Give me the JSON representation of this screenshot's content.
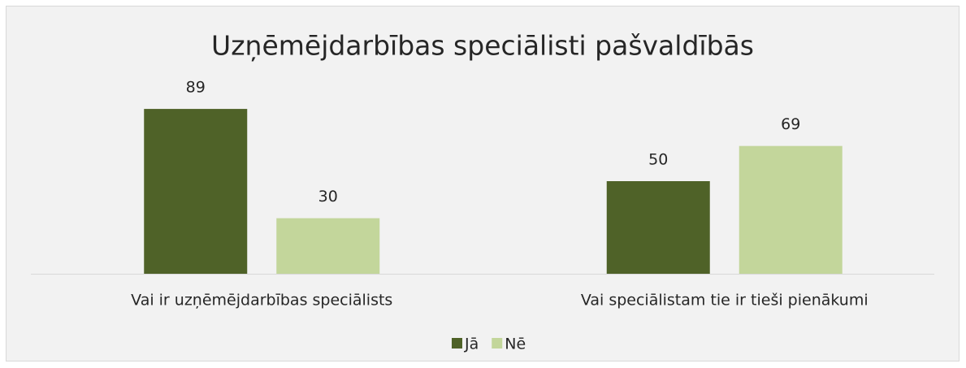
{
  "chart_data": {
    "type": "bar",
    "title": "Uzņēmējdarbības speciālisti pašvaldībās",
    "categories": [
      "Vai ir uzņēmējdarbības speciālists",
      "Vai speciālistam tie ir tieši pienākumi"
    ],
    "series": [
      {
        "name": "Jā",
        "color": "#4f6228",
        "values": [
          89,
          50
        ]
      },
      {
        "name": "Nē",
        "color": "#c3d69b",
        "values": [
          30,
          69
        ]
      }
    ],
    "ylim": [
      0,
      100
    ],
    "legend": "bottom"
  }
}
